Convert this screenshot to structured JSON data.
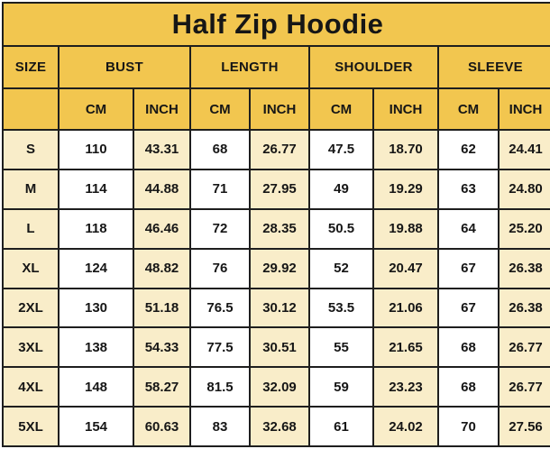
{
  "colors": {
    "header_yellow": "#F2C64F",
    "cell_cream": "#F9EDC9",
    "cell_white": "#FFFFFF",
    "border": "#1E1E1E",
    "text": "#161616"
  },
  "chart_data": {
    "type": "table",
    "title": "Half Zip Hoodie",
    "size_header": "SIZE",
    "measure_groups": [
      "BUST",
      "LENGTH",
      "SHOULDER",
      "SLEEVE"
    ],
    "unit_labels": [
      "CM",
      "INCH"
    ],
    "columns": [
      "SIZE",
      "BUST CM",
      "BUST INCH",
      "LENGTH CM",
      "LENGTH INCH",
      "SHOULDER CM",
      "SHOULDER INCH",
      "SLEEVE CM",
      "SLEEVE INCH"
    ],
    "rows": [
      {
        "size": "S",
        "values": [
          "110",
          "43.31",
          "68",
          "26.77",
          "47.5",
          "18.70",
          "62",
          "24.41"
        ]
      },
      {
        "size": "M",
        "values": [
          "114",
          "44.88",
          "71",
          "27.95",
          "49",
          "19.29",
          "63",
          "24.80"
        ]
      },
      {
        "size": "L",
        "values": [
          "118",
          "46.46",
          "72",
          "28.35",
          "50.5",
          "19.88",
          "64",
          "25.20"
        ]
      },
      {
        "size": "XL",
        "values": [
          "124",
          "48.82",
          "76",
          "29.92",
          "52",
          "20.47",
          "67",
          "26.38"
        ]
      },
      {
        "size": "2XL",
        "values": [
          "130",
          "51.18",
          "76.5",
          "30.12",
          "53.5",
          "21.06",
          "67",
          "26.38"
        ]
      },
      {
        "size": "3XL",
        "values": [
          "138",
          "54.33",
          "77.5",
          "30.51",
          "55",
          "21.65",
          "68",
          "26.77"
        ]
      },
      {
        "size": "4XL",
        "values": [
          "148",
          "58.27",
          "81.5",
          "32.09",
          "59",
          "23.23",
          "68",
          "26.77"
        ]
      },
      {
        "size": "5XL",
        "values": [
          "154",
          "60.63",
          "83",
          "32.68",
          "61",
          "24.02",
          "70",
          "27.56"
        ]
      }
    ]
  }
}
